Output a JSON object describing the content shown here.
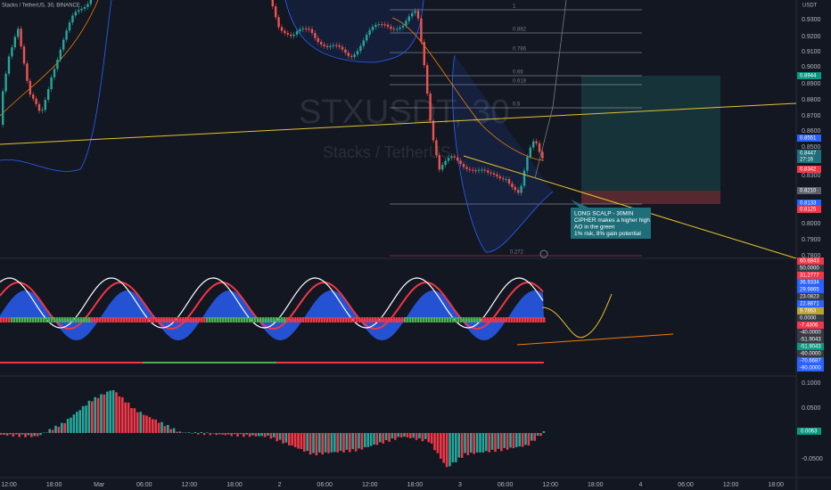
{
  "header": {
    "symbol": "Stacks / TetherUS, 30, BINANCE",
    "currency": "USDT"
  },
  "watermark": {
    "ticker": "STXUSDT, 30",
    "name": "Stacks / TetherUS"
  },
  "price_axis": [
    "0.9300",
    "0.9200",
    "0.9100",
    "0.9000",
    "0.8900",
    "0.8800",
    "0.8700",
    "0.8600",
    "0.8500",
    "0.8300",
    "0.8000",
    "0.7900",
    "0.7800"
  ],
  "price_badges": [
    "0.8944",
    "0.8551",
    "0.8447",
    "27:16",
    "0.8342",
    "0.8210",
    "0.8133",
    "0.8125"
  ],
  "osc_badges": [
    "60.6843",
    "50.0000",
    "31.2777",
    "36.9334",
    "29.9865",
    "23.0823",
    "22.8871",
    "9.7863",
    "0.0000",
    "-7.4306",
    "-40.0000",
    "-51.9043",
    "-51.9043",
    "-60.0000",
    "-70.6687",
    "-90.0000"
  ],
  "ao_axis": [
    "0.1000",
    "0.0500",
    "-0.0500"
  ],
  "ao_badge": "0.0063",
  "time_axis": [
    "12:00",
    "18:00",
    "Mar",
    "06:00",
    "12:00",
    "18:00",
    "2",
    "06:00",
    "12:00",
    "18:00",
    "3",
    "06:00",
    "12:00",
    "18:00",
    "4",
    "06:00",
    "12:00",
    "18:00"
  ],
  "fib_levels": [
    "1",
    "0.882",
    "0.786",
    "0.66",
    "0.618",
    "0.5",
    "0.272"
  ],
  "annotation": [
    "LONG SCALP - 30MIN",
    "CIPHER makes a higher high",
    "AO in the green",
    "1% risk, 8% gain potential"
  ]
}
